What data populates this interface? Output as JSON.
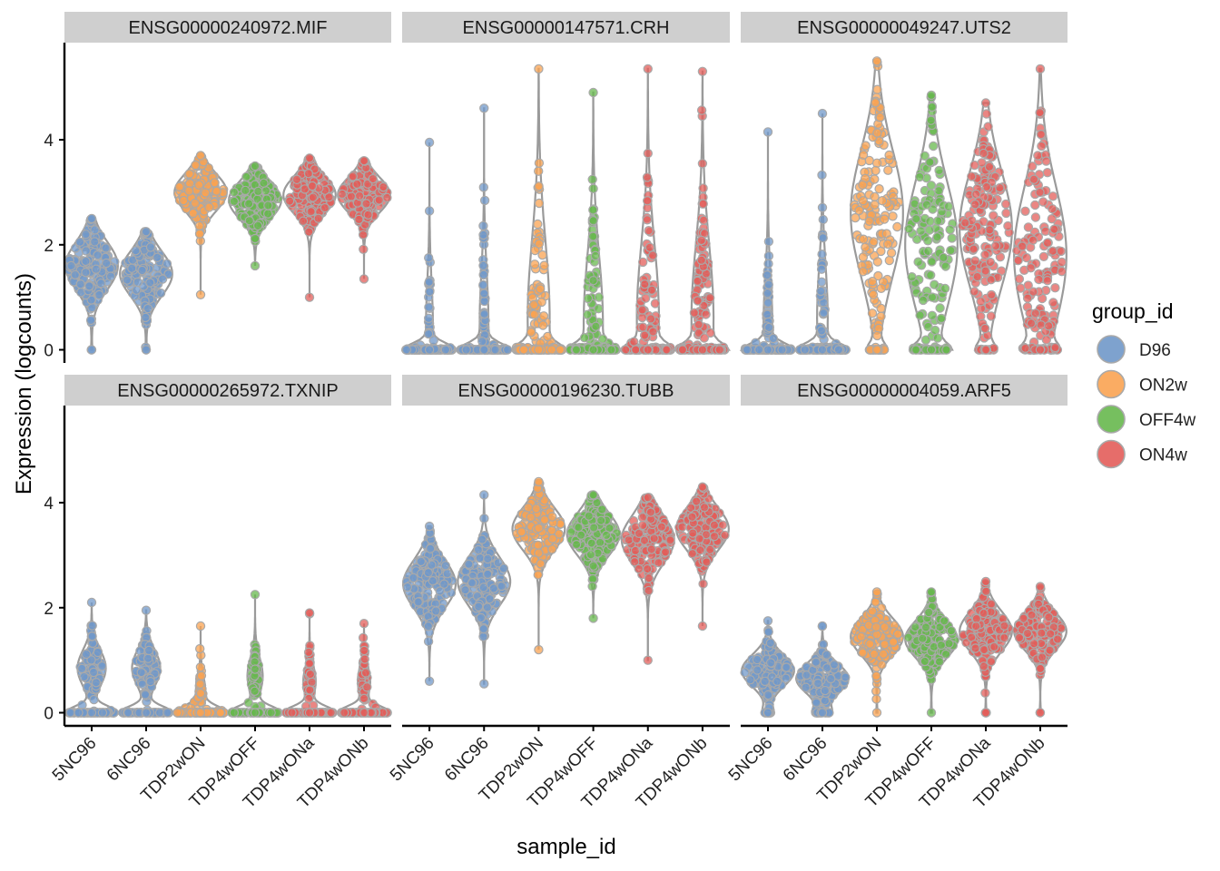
{
  "chart_data": {
    "type": "violin",
    "xlabel": "sample_id",
    "ylabel": "Expression (logcounts)",
    "ylim": [
      -0.25,
      5.85
    ],
    "yticks": [
      0,
      2,
      4
    ],
    "samples": [
      "5NC96",
      "6NC96",
      "TDP2wON",
      "TDP4wOFF",
      "TDP4wONa",
      "TDP4wONb"
    ],
    "sample_groups": [
      "D96",
      "D96",
      "ON2w",
      "OFF4w",
      "ON4w",
      "ON4w"
    ],
    "legend": {
      "title": "group_id",
      "position": "right",
      "entries": [
        {
          "label": "D96",
          "color": "#7098c9"
        },
        {
          "label": "ON2w",
          "color": "#f9a352"
        },
        {
          "label": "OFF4w",
          "color": "#67b84e"
        },
        {
          "label": "ON4w",
          "color": "#e35d5a"
        }
      ]
    },
    "panels": [
      {
        "title": "ENSG00000240972.MIF",
        "violins": [
          {
            "sample": "5NC96",
            "min": 0,
            "max": 2.5,
            "center": 1.6,
            "spread": 0.45,
            "zero_frac": 0.01
          },
          {
            "sample": "6NC96",
            "min": 0,
            "max": 2.25,
            "center": 1.45,
            "spread": 0.42,
            "zero_frac": 0.01
          },
          {
            "sample": "TDP2wON",
            "min": 1.05,
            "max": 3.7,
            "center": 3.0,
            "spread": 0.35,
            "zero_frac": 0
          },
          {
            "sample": "TDP4wOFF",
            "min": 1.6,
            "max": 3.5,
            "center": 2.85,
            "spread": 0.35,
            "zero_frac": 0
          },
          {
            "sample": "TDP4wONa",
            "min": 1.0,
            "max": 3.65,
            "center": 2.95,
            "spread": 0.35,
            "zero_frac": 0
          },
          {
            "sample": "TDP4wONb",
            "min": 1.35,
            "max": 3.6,
            "center": 2.95,
            "spread": 0.33,
            "zero_frac": 0
          }
        ]
      },
      {
        "title": "ENSG00000147571.CRH",
        "violins": [
          {
            "sample": "5NC96",
            "min": 0,
            "max": 3.95,
            "center": 0.4,
            "spread": 0.9,
            "zero_frac": 0.75
          },
          {
            "sample": "6NC96",
            "min": 0,
            "max": 4.6,
            "center": 0.5,
            "spread": 1.0,
            "zero_frac": 0.7
          },
          {
            "sample": "TDP2wON",
            "min": 0,
            "max": 5.35,
            "center": 0.6,
            "spread": 1.5,
            "zero_frac": 0.4
          },
          {
            "sample": "TDP4wOFF",
            "min": 0,
            "max": 4.9,
            "center": 0.5,
            "spread": 1.3,
            "zero_frac": 0.45
          },
          {
            "sample": "TDP4wONa",
            "min": 0,
            "max": 5.35,
            "center": 0.6,
            "spread": 1.4,
            "zero_frac": 0.4
          },
          {
            "sample": "TDP4wONb",
            "min": 0,
            "max": 5.3,
            "center": 0.6,
            "spread": 1.4,
            "zero_frac": 0.4
          }
        ]
      },
      {
        "title": "ENSG00000049247.UTS2",
        "violins": [
          {
            "sample": "5NC96",
            "min": 0,
            "max": 4.15,
            "center": 0.5,
            "spread": 0.9,
            "zero_frac": 0.7
          },
          {
            "sample": "6NC96",
            "min": 0,
            "max": 4.5,
            "center": 0.6,
            "spread": 1.0,
            "zero_frac": 0.65
          },
          {
            "sample": "TDP2wON",
            "min": 0,
            "max": 5.5,
            "center": 2.6,
            "spread": 1.2,
            "zero_frac": 0.12
          },
          {
            "sample": "TDP4wOFF",
            "min": 0,
            "max": 4.85,
            "center": 2.0,
            "spread": 1.2,
            "zero_frac": 0.2
          },
          {
            "sample": "TDP4wONa",
            "min": 0,
            "max": 4.7,
            "center": 2.3,
            "spread": 1.1,
            "zero_frac": 0.12
          },
          {
            "sample": "TDP4wONb",
            "min": 0,
            "max": 5.35,
            "center": 1.8,
            "spread": 1.3,
            "zero_frac": 0.15
          }
        ]
      },
      {
        "title": "ENSG00000265972.TXNIP",
        "violins": [
          {
            "sample": "5NC96",
            "min": 0,
            "max": 2.1,
            "center": 0.85,
            "spread": 0.35,
            "zero_frac": 0.45
          },
          {
            "sample": "6NC96",
            "min": 0,
            "max": 1.95,
            "center": 0.85,
            "spread": 0.35,
            "zero_frac": 0.45
          },
          {
            "sample": "TDP2wON",
            "min": 0,
            "max": 1.65,
            "center": 0.4,
            "spread": 0.3,
            "zero_frac": 0.7
          },
          {
            "sample": "TDP4wOFF",
            "min": 0,
            "max": 2.25,
            "center": 0.7,
            "spread": 0.35,
            "zero_frac": 0.6
          },
          {
            "sample": "TDP4wONa",
            "min": 0,
            "max": 1.9,
            "center": 0.6,
            "spread": 0.3,
            "zero_frac": 0.65
          },
          {
            "sample": "TDP4wONb",
            "min": 0,
            "max": 1.7,
            "center": 0.6,
            "spread": 0.3,
            "zero_frac": 0.65
          }
        ]
      },
      {
        "title": "ENSG00000196230.TUBB",
        "violins": [
          {
            "sample": "5NC96",
            "min": 0.6,
            "max": 3.55,
            "center": 2.45,
            "spread": 0.45,
            "zero_frac": 0
          },
          {
            "sample": "6NC96",
            "min": 0.55,
            "max": 4.15,
            "center": 2.5,
            "spread": 0.45,
            "zero_frac": 0
          },
          {
            "sample": "TDP2wON",
            "min": 1.2,
            "max": 4.4,
            "center": 3.5,
            "spread": 0.4,
            "zero_frac": 0
          },
          {
            "sample": "TDP4wOFF",
            "min": 1.8,
            "max": 4.15,
            "center": 3.4,
            "spread": 0.4,
            "zero_frac": 0
          },
          {
            "sample": "TDP4wONa",
            "min": 1.0,
            "max": 4.1,
            "center": 3.3,
            "spread": 0.45,
            "zero_frac": 0
          },
          {
            "sample": "TDP4wONb",
            "min": 1.65,
            "max": 4.3,
            "center": 3.5,
            "spread": 0.4,
            "zero_frac": 0
          }
        ]
      },
      {
        "title": "ENSG00000004059.ARF5",
        "violins": [
          {
            "sample": "5NC96",
            "min": 0,
            "max": 1.75,
            "center": 0.8,
            "spread": 0.3,
            "zero_frac": 0.08
          },
          {
            "sample": "6NC96",
            "min": 0,
            "max": 1.65,
            "center": 0.65,
            "spread": 0.28,
            "zero_frac": 0.12
          },
          {
            "sample": "TDP2wON",
            "min": 0,
            "max": 2.3,
            "center": 1.45,
            "spread": 0.35,
            "zero_frac": 0.01
          },
          {
            "sample": "TDP4wOFF",
            "min": 0,
            "max": 2.3,
            "center": 1.4,
            "spread": 0.35,
            "zero_frac": 0.01
          },
          {
            "sample": "TDP4wONa",
            "min": 0,
            "max": 2.5,
            "center": 1.55,
            "spread": 0.38,
            "zero_frac": 0.01
          },
          {
            "sample": "TDP4wONb",
            "min": 0,
            "max": 2.4,
            "center": 1.55,
            "spread": 0.35,
            "zero_frac": 0.01
          }
        ]
      }
    ]
  }
}
